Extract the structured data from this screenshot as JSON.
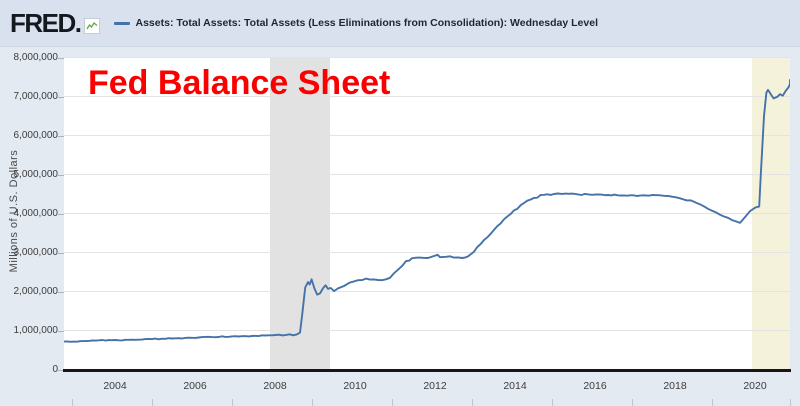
{
  "header": {
    "logo_text": "FRED.",
    "logo_icon": "sparkline-chart-icon",
    "legend_marker_color": "#4572a7",
    "legend_label": "Assets: Total Assets: Total Assets (Less Eliminations from Consolidation): Wednesday Level"
  },
  "overlay_title": {
    "text": "Fed Balance Sheet",
    "color": "#fb0000"
  },
  "chart_data": {
    "type": "line",
    "title": "Fed Balance Sheet",
    "ylabel": "Millions of U.S. Dollars",
    "ylim": [
      0,
      8000000
    ],
    "xlim": [
      2002.8,
      2021.1
    ],
    "grid": "horizontal",
    "legend_position": "top",
    "y_ticks": [
      {
        "label": "0",
        "value": 0
      },
      {
        "label": "1,000,000",
        "value": 1000000
      },
      {
        "label": "2,000,000",
        "value": 2000000
      },
      {
        "label": "3,000,000",
        "value": 3000000
      },
      {
        "label": "4,000,000",
        "value": 4000000
      },
      {
        "label": "5,000,000",
        "value": 5000000
      },
      {
        "label": "6,000,000",
        "value": 6000000
      },
      {
        "label": "7,000,000",
        "value": 7000000
      },
      {
        "label": "8,000,000",
        "value": 8000000
      }
    ],
    "x_ticks": [
      {
        "label": "2004",
        "year": 2004
      },
      {
        "label": "2006",
        "year": 2006
      },
      {
        "label": "2008",
        "year": 2008
      },
      {
        "label": "2010",
        "year": 2010
      },
      {
        "label": "2012",
        "year": 2012
      },
      {
        "label": "2014",
        "year": 2014
      },
      {
        "label": "2016",
        "year": 2016
      },
      {
        "label": "2018",
        "year": 2018
      },
      {
        "label": "2020",
        "year": 2020
      }
    ],
    "bands": [
      {
        "name": "us-recession-2008",
        "from": 2007.95,
        "to": 2009.45,
        "color": "#e2e2e2"
      },
      {
        "name": "us-recession-2020",
        "from": 2020.0,
        "to": 2021.1,
        "color": "#f5f2dc"
      }
    ],
    "series": [
      {
        "name": "Assets: Total Assets: Total Assets (Less Eliminations from Consolidation): Wednesday Level",
        "color": "#4572a7",
        "units": "Millions of U.S. Dollars",
        "points": [
          [
            2002.8,
            715000
          ],
          [
            2003.2,
            725000
          ],
          [
            2003.6,
            740000
          ],
          [
            2004.0,
            752000
          ],
          [
            2004.5,
            765000
          ],
          [
            2005.0,
            780000
          ],
          [
            2005.5,
            795000
          ],
          [
            2006.0,
            812000
          ],
          [
            2006.5,
            830000
          ],
          [
            2007.0,
            850000
          ],
          [
            2007.5,
            858000
          ],
          [
            2008.0,
            878000
          ],
          [
            2008.35,
            888000
          ],
          [
            2008.62,
            900000
          ],
          [
            2008.7,
            945000
          ],
          [
            2008.76,
            1450000
          ],
          [
            2008.83,
            2100000
          ],
          [
            2008.9,
            2240000
          ],
          [
            2008.94,
            2180000
          ],
          [
            2008.99,
            2310000
          ],
          [
            2009.06,
            2080000
          ],
          [
            2009.13,
            1920000
          ],
          [
            2009.2,
            1950000
          ],
          [
            2009.28,
            2090000
          ],
          [
            2009.34,
            2160000
          ],
          [
            2009.4,
            2070000
          ],
          [
            2009.47,
            2090000
          ],
          [
            2009.55,
            2010000
          ],
          [
            2009.65,
            2080000
          ],
          [
            2009.8,
            2140000
          ],
          [
            2009.95,
            2230000
          ],
          [
            2010.15,
            2290000
          ],
          [
            2010.35,
            2330000
          ],
          [
            2010.55,
            2310000
          ],
          [
            2010.75,
            2290000
          ],
          [
            2010.95,
            2350000
          ],
          [
            2011.15,
            2560000
          ],
          [
            2011.35,
            2780000
          ],
          [
            2011.5,
            2850000
          ],
          [
            2011.7,
            2870000
          ],
          [
            2011.9,
            2860000
          ],
          [
            2012.05,
            2910000
          ],
          [
            2012.14,
            2940000
          ],
          [
            2012.2,
            2880000
          ],
          [
            2012.35,
            2890000
          ],
          [
            2012.55,
            2870000
          ],
          [
            2012.75,
            2860000
          ],
          [
            2012.9,
            2900000
          ],
          [
            2013.05,
            3020000
          ],
          [
            2013.3,
            3320000
          ],
          [
            2013.55,
            3580000
          ],
          [
            2013.8,
            3850000
          ],
          [
            2014.05,
            4080000
          ],
          [
            2014.3,
            4270000
          ],
          [
            2014.55,
            4400000
          ],
          [
            2014.8,
            4480000
          ],
          [
            2015.05,
            4500000
          ],
          [
            2015.35,
            4510000
          ],
          [
            2015.65,
            4490000
          ],
          [
            2016.0,
            4480000
          ],
          [
            2016.4,
            4475000
          ],
          [
            2016.8,
            4465000
          ],
          [
            2017.2,
            4460000
          ],
          [
            2017.6,
            4470000
          ],
          [
            2017.9,
            4450000
          ],
          [
            2018.2,
            4390000
          ],
          [
            2018.55,
            4300000
          ],
          [
            2018.9,
            4120000
          ],
          [
            2019.2,
            3970000
          ],
          [
            2019.5,
            3830000
          ],
          [
            2019.7,
            3760000
          ],
          [
            2019.82,
            3900000
          ],
          [
            2019.95,
            4060000
          ],
          [
            2020.08,
            4150000
          ],
          [
            2020.18,
            4180000
          ],
          [
            2020.22,
            5000000
          ],
          [
            2020.3,
            6500000
          ],
          [
            2020.36,
            7100000
          ],
          [
            2020.4,
            7170000
          ],
          [
            2020.48,
            7040000
          ],
          [
            2020.54,
            6950000
          ],
          [
            2020.63,
            6990000
          ],
          [
            2020.7,
            7060000
          ],
          [
            2020.77,
            7020000
          ],
          [
            2020.84,
            7140000
          ],
          [
            2020.91,
            7230000
          ],
          [
            2020.97,
            7320000
          ],
          [
            2021.03,
            7410000
          ],
          [
            2021.07,
            7440000
          ]
        ]
      }
    ]
  }
}
